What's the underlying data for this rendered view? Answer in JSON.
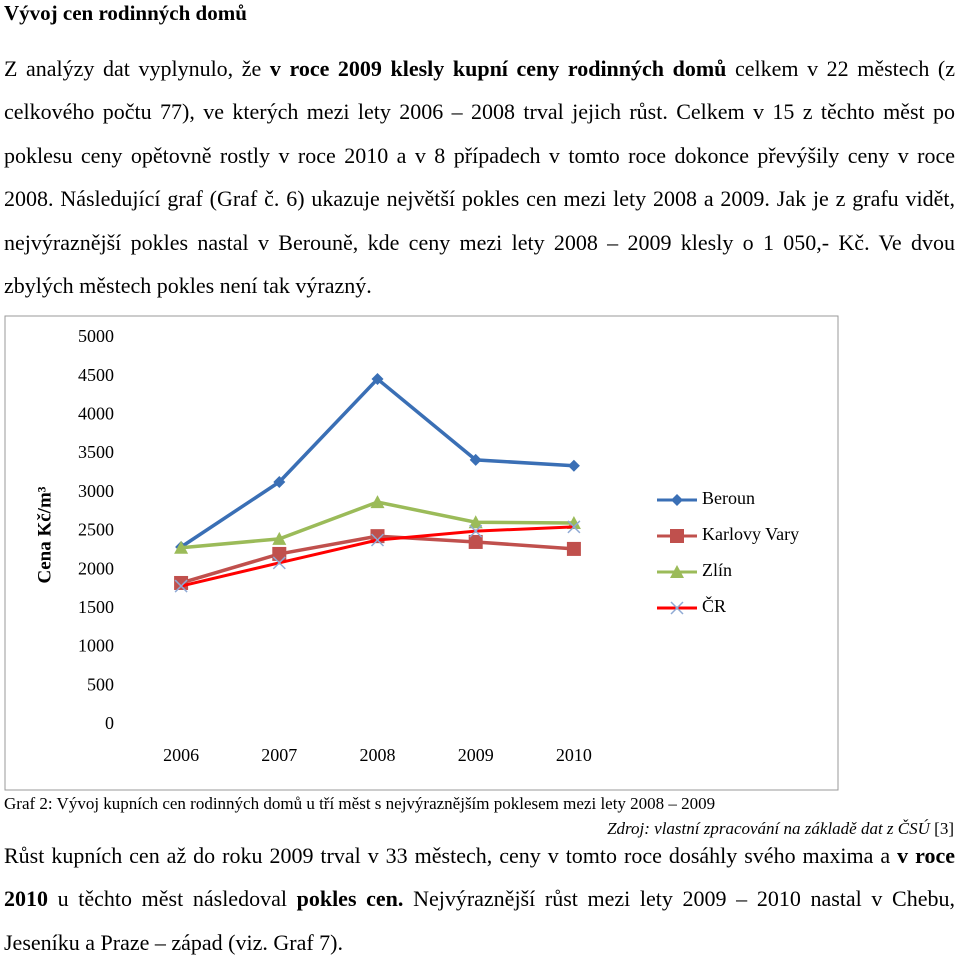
{
  "heading": "Vývoj cen rodinných domů",
  "intro": {
    "runs": [
      {
        "text": "Z analýzy dat vyplynulo, že "
      },
      {
        "text": "v roce 2009 klesly kupní ceny rodinných domů",
        "bold": true
      },
      {
        "text": " celkem v 22 městech (z celkového počtu 77), ve kterých mezi lety 2006 – 2008 trval jejich růst. Celkem v 15 z těchto měst po poklesu ceny opětovně rostly v roce 2010 a v 8 případech v tomto roce dokonce převýšily ceny v roce 2008. Následující graf (Graf č. 6) ukazuje největší pokles cen mezi lety 2008 a 2009. Jak je z grafu vidět, nejvýraznější pokles nastal v Berouně, kde ceny mezi lety 2008 – 2009 klesly o 1 050,- Kč. Ve dvou zbylých městech pokles není tak výrazný."
      }
    ]
  },
  "chart_data": {
    "type": "line",
    "y_label": "Cena Kč/m³",
    "categories": [
      "2006",
      "2007",
      "2008",
      "2009",
      "2010"
    ],
    "series": [
      {
        "name": "Beroun",
        "color": "#3a6fb5",
        "marker": "diamond",
        "values": [
          2300,
          3140,
          4470,
          3425,
          3350
        ]
      },
      {
        "name": "Karlovy Vary",
        "color": "#c0504d",
        "marker": "square",
        "values": [
          1835,
          2210,
          2440,
          2365,
          2275
        ]
      },
      {
        "name": "Zlín",
        "color": "#9bbb59",
        "marker": "triangle",
        "values": [
          2290,
          2405,
          2880,
          2620,
          2610
        ]
      },
      {
        "name": "ČR",
        "color": "#ff0000",
        "marker": "x",
        "values": [
          1795,
          2095,
          2390,
          2505,
          2560
        ]
      }
    ],
    "ylim": [
      0,
      5000
    ],
    "yticks": [
      0,
      500,
      1000,
      1500,
      2000,
      2500,
      3000,
      3500,
      4000,
      4500,
      5000
    ],
    "grid": false,
    "legend": "right"
  },
  "caption": "Graf 2: Vývoj kupních cen rodinných domů u tří měst s nejvýraznějším poklesem mezi lety 2008 – 2009",
  "source": {
    "runs": [
      {
        "text": "Zdroj: vlastní zpracování na základě dat z ČSÚ",
        "italic": true
      },
      {
        "text": " [3]"
      }
    ]
  },
  "closing": {
    "runs": [
      {
        "text": "Růst kupních cen až do roku 2009 trval v 33 městech, ceny v tomto roce dosáhly svého maxima a "
      },
      {
        "text": "v roce 2010",
        "bold": true
      },
      {
        "text": " u těchto měst následoval "
      },
      {
        "text": "pokles cen.",
        "bold": true
      },
      {
        "text": " Nejvýraznější růst mezi lety 2009 – 2010 nastal v Chebu, Jeseníku a Praze – západ (viz. Graf 7)."
      }
    ]
  }
}
